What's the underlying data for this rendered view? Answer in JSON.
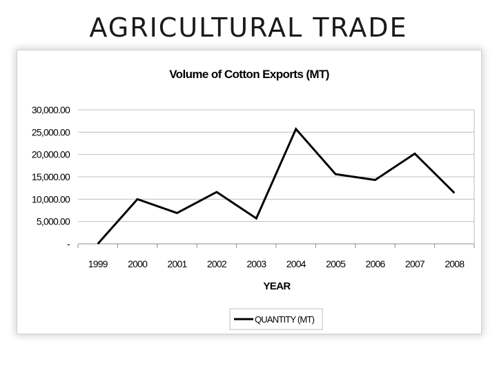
{
  "slide": {
    "title": "AGRICULTURAL TRADE"
  },
  "chart_data": {
    "type": "line",
    "title": "Volume of Cotton Exports (MT)",
    "xlabel": "YEAR",
    "ylabel": "",
    "categories": [
      "1999",
      "2000",
      "2001",
      "2002",
      "2003",
      "2004",
      "2005",
      "2006",
      "2007",
      "2008"
    ],
    "series": [
      {
        "name": "QUANTITY (MT)",
        "values": [
          0,
          10000,
          6900,
          11600,
          5700,
          25700,
          15600,
          14300,
          20200,
          11400
        ],
        "color": "#000000"
      }
    ],
    "ylim": [
      0,
      30000
    ],
    "yticks": [
      0,
      5000,
      10000,
      15000,
      20000,
      25000,
      30000
    ],
    "ytick_labels": [
      "-",
      "5,000.00",
      "10,000.00",
      "15,000.00",
      "20,000.00",
      "25,000.00",
      "30,000.00"
    ],
    "grid": true,
    "legend_position": "bottom"
  }
}
